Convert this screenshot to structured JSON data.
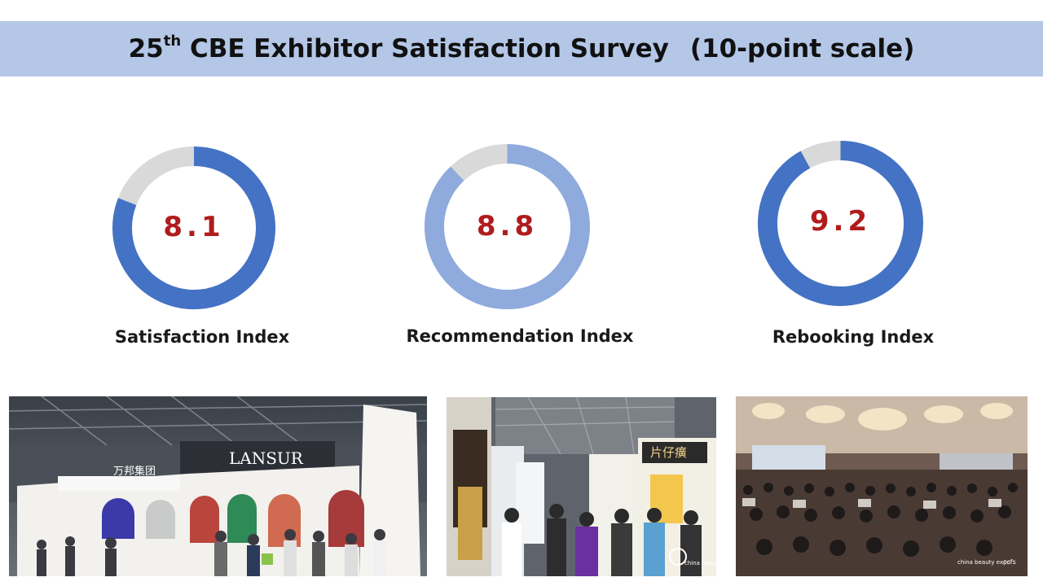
{
  "title": {
    "prefix": "25",
    "sup": "th",
    "main": " CBE Exhibitor Satisfaction Survey",
    "scale": "(10-point scale)"
  },
  "colors": {
    "title_bar": "#b4c7e7",
    "ring_dark": "#4472c4",
    "ring_light": "#8faadc",
    "ring_remainder": "#d9d9d9",
    "value_text": "#b01c1c"
  },
  "chart_data": [
    {
      "type": "pie",
      "max": 10,
      "value": 8.1,
      "value_label": "8.1",
      "caption": "Satisfaction Index",
      "fill_color": "#4472c4"
    },
    {
      "type": "pie",
      "max": 10,
      "value": 8.8,
      "value_label": "8.8",
      "caption": "Recommendation Index",
      "fill_color": "#8faadc"
    },
    {
      "type": "pie",
      "max": 10,
      "value": 9.2,
      "value_label": "9.2",
      "caption": "Rebooking Index",
      "fill_color": "#4472c4"
    }
  ],
  "photos": {
    "left": {
      "brand1": "万邦集团",
      "brand2": "LANSUR"
    },
    "middle": {
      "sign": "片仔癀",
      "logo": "china beauty expo"
    },
    "right": {
      "logo1": "china beauty expo",
      "logo2": "ccfs"
    }
  }
}
